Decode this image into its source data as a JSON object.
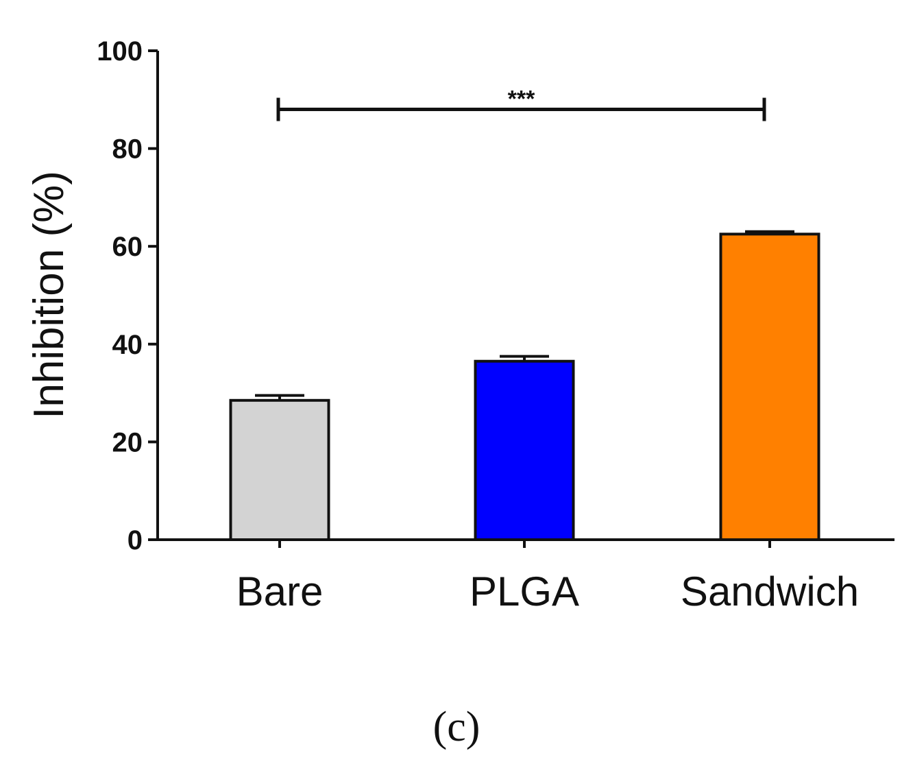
{
  "panel_label": "(c)",
  "chart_data": {
    "type": "bar",
    "categories": [
      "Bare",
      "PLGA",
      "Sandwich"
    ],
    "values": [
      28.5,
      36.5,
      62.5
    ],
    "errors": [
      1.0,
      1.0,
      0.5
    ],
    "colors": [
      "#d3d3d3",
      "#0000ff",
      "#ff8000"
    ],
    "title": "",
    "xlabel": "",
    "ylabel": "Inhibition (%)",
    "ylim": [
      0,
      100
    ],
    "yticks": [
      0,
      20,
      40,
      60,
      80,
      100
    ],
    "significance": {
      "from": "Bare",
      "to": "Sandwich",
      "label": "***",
      "y": 88
    }
  }
}
